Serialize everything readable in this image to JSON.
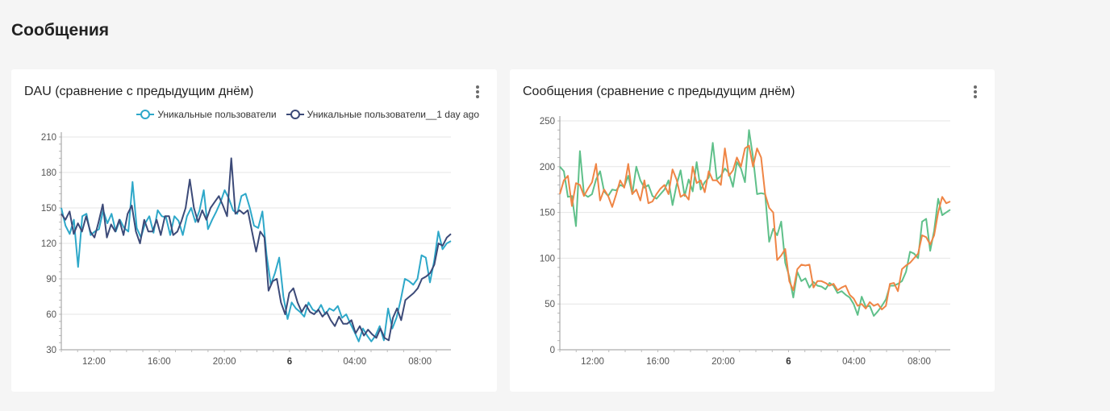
{
  "page": {
    "title": "Сообщения"
  },
  "cards": [
    {
      "title": "DAU (сравнение с предыдущим днём)"
    },
    {
      "title": "Сообщения (сравнение с предыдущим днём)"
    }
  ],
  "chart_data": [
    {
      "type": "line",
      "title": "DAU (сравнение с предыдущим днём)",
      "legend_position": "top-right",
      "grid": true,
      "ylim": [
        30,
        210
      ],
      "yticks": [
        30,
        60,
        90,
        120,
        150,
        180,
        210
      ],
      "x_start_hour": 10.0,
      "x_end_hour": 33.9,
      "xticks": [
        {
          "label": "12:00",
          "hour": 12,
          "bold": false
        },
        {
          "label": "16:00",
          "hour": 16,
          "bold": false
        },
        {
          "label": "20:00",
          "hour": 20,
          "bold": false
        },
        {
          "label": "6",
          "hour": 24,
          "bold": true
        },
        {
          "label": "04:00",
          "hour": 28,
          "bold": false
        },
        {
          "label": "08:00",
          "hour": 32,
          "bold": false
        }
      ],
      "series": [
        {
          "name": "Уникальные пользователи",
          "color": "#2ea8c9",
          "values": [
            150,
            135,
            128,
            140,
            100,
            143,
            145,
            127,
            130,
            132,
            148,
            137,
            145,
            130,
            140,
            133,
            130,
            172,
            133,
            125,
            137,
            143,
            129,
            148,
            143,
            142,
            127,
            143,
            139,
            127,
            143,
            150,
            138,
            148,
            165,
            132,
            140,
            147,
            155,
            165,
            158,
            148,
            145,
            160,
            162,
            150,
            135,
            133,
            147,
            110,
            85,
            95,
            108,
            75,
            56,
            70,
            65,
            62,
            58,
            70,
            64,
            62,
            68,
            60,
            65,
            63,
            67,
            57,
            60,
            52,
            45,
            37,
            48,
            42,
            37,
            42,
            50,
            38,
            65,
            48,
            57,
            72,
            90,
            88,
            85,
            90,
            110,
            108,
            87,
            105,
            130,
            115,
            120,
            122
          ]
        },
        {
          "name": "Уникальные пользователи__1 day ago",
          "color": "#3c4a78",
          "values": [
            145,
            140,
            147,
            128,
            137,
            130,
            143,
            130,
            125,
            138,
            153,
            125,
            136,
            130,
            140,
            127,
            145,
            152,
            130,
            120,
            140,
            130,
            130,
            140,
            127,
            143,
            143,
            127,
            130,
            139,
            150,
            174,
            150,
            138,
            148,
            140,
            150,
            155,
            160,
            152,
            143,
            192,
            145,
            148,
            145,
            148,
            130,
            113,
            130,
            125,
            80,
            88,
            90,
            70,
            60,
            78,
            82,
            70,
            62,
            68,
            62,
            60,
            64,
            58,
            62,
            55,
            50,
            58,
            52,
            52,
            55,
            44,
            50,
            42,
            47,
            43,
            40,
            48,
            40,
            38,
            57,
            65,
            55,
            72,
            75,
            78,
            82,
            90,
            92,
            95,
            102,
            120,
            118,
            125,
            128
          ]
        }
      ]
    },
    {
      "type": "line",
      "title": "Сообщения (сравнение с предыдущим днём)",
      "legend_position": "none",
      "grid": true,
      "ylim": [
        0,
        250
      ],
      "yticks": [
        0,
        50,
        100,
        150,
        200,
        250
      ],
      "x_start_hour": 10.0,
      "x_end_hour": 33.9,
      "xticks": [
        {
          "label": "12:00",
          "hour": 12,
          "bold": false
        },
        {
          "label": "16:00",
          "hour": 16,
          "bold": false
        },
        {
          "label": "20:00",
          "hour": 20,
          "bold": false
        },
        {
          "label": "6",
          "hour": 24,
          "bold": true
        },
        {
          "label": "04:00",
          "hour": 28,
          "bold": false
        },
        {
          "label": "08:00",
          "hour": 32,
          "bold": false
        }
      ],
      "series": [
        {
          "name": "",
          "color": "#5fc08a",
          "values": [
            200,
            195,
            167,
            168,
            135,
            217,
            170,
            167,
            170,
            186,
            195,
            173,
            168,
            175,
            174,
            180,
            178,
            190,
            170,
            200,
            185,
            177,
            180,
            168,
            165,
            170,
            175,
            185,
            158,
            180,
            196,
            168,
            186,
            173,
            205,
            175,
            183,
            188,
            226,
            186,
            190,
            198,
            193,
            178,
            205,
            198,
            183,
            240,
            210,
            170,
            171,
            170,
            118,
            132,
            125,
            140,
            95,
            80,
            57,
            85,
            75,
            78,
            68,
            74,
            70,
            69,
            66,
            73,
            70,
            62,
            64,
            60,
            57,
            50,
            38,
            58,
            47,
            48,
            37,
            42,
            48,
            55,
            70,
            70,
            72,
            75,
            85,
            107,
            105,
            100,
            140,
            143,
            108,
            130,
            165,
            147,
            150,
            153
          ]
        },
        {
          "name": "",
          "color": "#ef8545",
          "values": [
            170,
            185,
            190,
            157,
            182,
            180,
            168,
            176,
            183,
            203,
            163,
            175,
            168,
            156,
            170,
            185,
            177,
            203,
            170,
            175,
            163,
            185,
            160,
            162,
            170,
            176,
            180,
            170,
            197,
            186,
            167,
            170,
            164,
            200,
            182,
            185,
            172,
            195,
            185,
            185,
            180,
            220,
            190,
            196,
            210,
            200,
            220,
            223,
            200,
            220,
            210,
            170,
            155,
            150,
            98,
            103,
            110,
            75,
            65,
            88,
            93,
            92,
            93,
            68,
            75,
            75,
            73,
            70,
            72,
            65,
            68,
            70,
            60,
            56,
            48,
            50,
            45,
            52,
            48,
            50,
            44,
            48,
            72,
            73,
            64,
            88,
            92,
            95,
            100,
            105,
            125,
            123,
            115,
            125,
            150,
            167,
            160,
            162
          ]
        }
      ]
    }
  ]
}
